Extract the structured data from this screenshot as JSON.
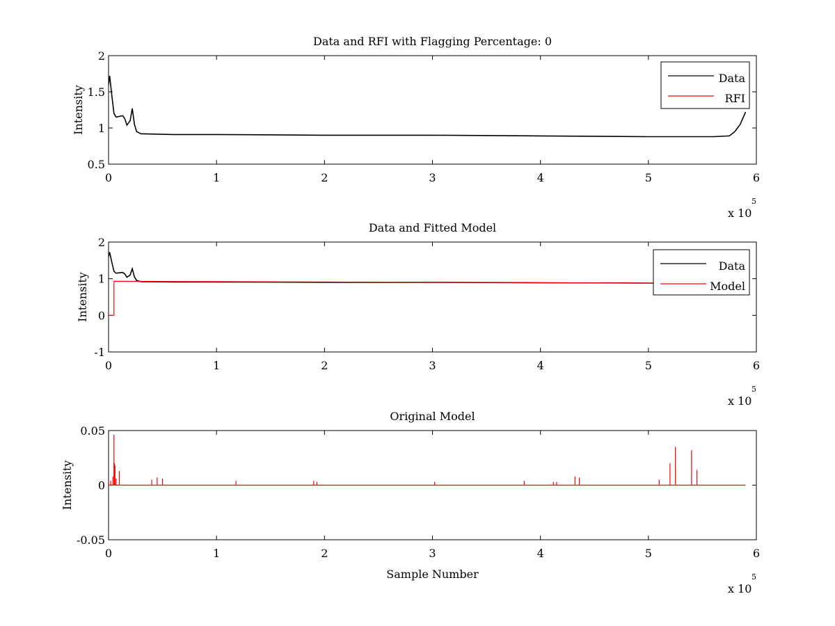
{
  "chart_data": [
    {
      "type": "line",
      "title": "Data and RFI with Flagging Percentage: 0",
      "xlabel": "",
      "ylabel": "Intensity",
      "xlim": [
        0,
        600000
      ],
      "ylim": [
        0.5,
        2
      ],
      "x_ticks": [
        0,
        1,
        2,
        3,
        4,
        5,
        6
      ],
      "y_ticks": [
        0.5,
        1,
        1.5,
        2
      ],
      "y_tick_labels": [
        "0.5",
        "1",
        "1.5",
        "2"
      ],
      "x_exponent_base": "x 10",
      "x_exponent_power": "5",
      "legend": {
        "position": "top-right",
        "entries": [
          {
            "label": "Data",
            "color": "#000000"
          },
          {
            "label": "RFI",
            "color": "#ff0000"
          }
        ]
      },
      "series": [
        {
          "name": "Data",
          "color": "#000000",
          "x": [
            0,
            1000,
            3000,
            5000,
            7000,
            10000,
            13000,
            15000,
            17000,
            20000,
            22000,
            24000,
            26000,
            30000,
            60000,
            100000,
            200000,
            300000,
            400000,
            500000,
            560000,
            575000,
            580000,
            585000,
            590000
          ],
          "y": [
            1.6,
            1.72,
            1.45,
            1.2,
            1.15,
            1.16,
            1.17,
            1.13,
            1.04,
            1.1,
            1.27,
            1.05,
            0.95,
            0.92,
            0.91,
            0.91,
            0.9,
            0.9,
            0.89,
            0.88,
            0.88,
            0.89,
            0.95,
            1.05,
            1.22
          ]
        },
        {
          "name": "RFI",
          "color": "#ff0000",
          "x": [],
          "y": []
        }
      ]
    },
    {
      "type": "line",
      "title": "Data and Fitted Model",
      "xlabel": "",
      "ylabel": "Intensity",
      "xlim": [
        0,
        600000
      ],
      "ylim": [
        -1,
        2
      ],
      "x_ticks": [
        0,
        1,
        2,
        3,
        4,
        5,
        6
      ],
      "y_ticks": [
        -1,
        0,
        1,
        2
      ],
      "y_tick_labels": [
        "-1",
        "0",
        "1",
        "2"
      ],
      "x_exponent_base": "x 10",
      "x_exponent_power": "5",
      "legend": {
        "position": "top-right",
        "entries": [
          {
            "label": "Data",
            "color": "#000000"
          },
          {
            "label": "Model",
            "color": "#ff0000"
          }
        ]
      },
      "series": [
        {
          "name": "Data",
          "color": "#000000",
          "x": [
            0,
            1000,
            3000,
            5000,
            7000,
            10000,
            13000,
            15000,
            17000,
            20000,
            22000,
            24000,
            26000,
            30000,
            60000,
            100000,
            200000,
            300000,
            400000,
            500000,
            560000
          ],
          "y": [
            1.6,
            1.72,
            1.45,
            1.2,
            1.15,
            1.16,
            1.17,
            1.13,
            1.04,
            1.1,
            1.27,
            1.05,
            0.95,
            0.92,
            0.91,
            0.91,
            0.9,
            0.9,
            0.89,
            0.88,
            0.88
          ]
        },
        {
          "name": "Model",
          "color": "#ff0000",
          "x": [
            0,
            5000,
            5000,
            5000,
            100000,
            200000,
            300000,
            400000,
            500000,
            560000
          ],
          "y": [
            0,
            0,
            0,
            0.93,
            0.92,
            0.91,
            0.9,
            0.89,
            0.88,
            0.88
          ]
        }
      ]
    },
    {
      "type": "line",
      "title": "Original Model",
      "xlabel": "Sample Number",
      "ylabel": "Intensity",
      "xlim": [
        0,
        600000
      ],
      "ylim": [
        -0.05,
        0.05
      ],
      "x_ticks": [
        0,
        1,
        2,
        3,
        4,
        5,
        6
      ],
      "y_ticks": [
        -0.05,
        0,
        0.05
      ],
      "y_tick_labels": [
        "-0.05",
        "0",
        "0.05"
      ],
      "x_exponent_base": "x 10",
      "x_exponent_power": "5",
      "series": [
        {
          "name": "",
          "color": "#ff0000",
          "spikes_x": [
            2000,
            4000,
            5000,
            5500,
            6000,
            7000,
            10000,
            40000,
            45000,
            50000,
            118000,
            190000,
            193000,
            302000,
            385000,
            412000,
            415000,
            432000,
            436000,
            510000,
            520000,
            525000,
            540000,
            545000
          ],
          "spikes_y": [
            0.004,
            0.008,
            0.046,
            0.02,
            0.018,
            0.006,
            0.013,
            0.005,
            0.007,
            0.006,
            0.004,
            0.004,
            0.003,
            0.003,
            0.004,
            0.003,
            0.003,
            0.008,
            0.007,
            0.005,
            0.02,
            0.035,
            0.032,
            0.014
          ]
        }
      ]
    }
  ]
}
